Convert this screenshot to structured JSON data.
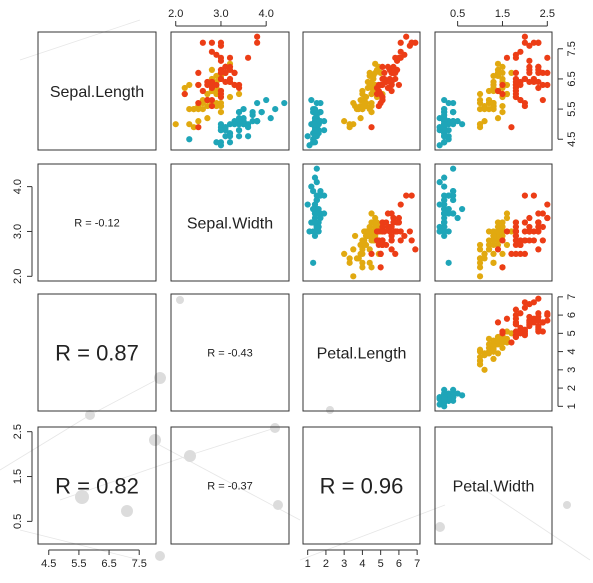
{
  "chart_data": {
    "type": "scatter-matrix",
    "variables": [
      "Sepal.Length",
      "Sepal.Width",
      "Petal.Length",
      "Petal.Width"
    ],
    "ranges": {
      "Sepal.Length": [
        4.3,
        7.9
      ],
      "Sepal.Width": [
        2.0,
        4.4
      ],
      "Petal.Length": [
        1.0,
        6.9
      ],
      "Petal.Width": [
        0.1,
        2.5
      ]
    },
    "ticks": {
      "Sepal.Length": [
        "4.5",
        "5.5",
        "6.5",
        "7.5"
      ],
      "Sepal.Width": [
        "2.0",
        "3.0",
        "4.0"
      ],
      "Petal.Length": [
        "1",
        "2",
        "3",
        "4",
        "5",
        "6",
        "7"
      ],
      "Petal.Width": [
        "0.5",
        "1.5",
        "2.5"
      ]
    },
    "correlations": [
      {
        "row": 1,
        "col": 0,
        "text": "R = -0.12",
        "size": "small"
      },
      {
        "row": 2,
        "col": 0,
        "text": "R = 0.87",
        "size": "large"
      },
      {
        "row": 2,
        "col": 1,
        "text": "R = -0.43",
        "size": "small"
      },
      {
        "row": 3,
        "col": 0,
        "text": "R = 0.82",
        "size": "large"
      },
      {
        "row": 3,
        "col": 1,
        "text": "R = -0.37",
        "size": "small"
      },
      {
        "row": 3,
        "col": 2,
        "text": "R = 0.96",
        "size": "large"
      }
    ],
    "colors": [
      "#1fa5b8",
      "#e1a910",
      "#ec3d16"
    ],
    "grid": false,
    "legend": "none",
    "series": [
      {
        "points": [
          [
            5.1,
            3.5,
            1.4,
            0.2
          ],
          [
            4.9,
            3.0,
            1.4,
            0.2
          ],
          [
            4.7,
            3.2,
            1.3,
            0.2
          ],
          [
            4.6,
            3.1,
            1.5,
            0.2
          ],
          [
            5.0,
            3.6,
            1.4,
            0.2
          ],
          [
            5.4,
            3.9,
            1.7,
            0.4
          ],
          [
            4.6,
            3.4,
            1.4,
            0.3
          ],
          [
            5.0,
            3.4,
            1.5,
            0.2
          ],
          [
            4.4,
            2.9,
            1.4,
            0.2
          ],
          [
            4.9,
            3.1,
            1.5,
            0.1
          ],
          [
            5.4,
            3.7,
            1.5,
            0.2
          ],
          [
            4.8,
            3.4,
            1.6,
            0.2
          ],
          [
            4.8,
            3.0,
            1.4,
            0.1
          ],
          [
            4.3,
            3.0,
            1.1,
            0.1
          ],
          [
            5.8,
            4.0,
            1.2,
            0.2
          ],
          [
            5.7,
            4.4,
            1.5,
            0.4
          ],
          [
            5.4,
            3.9,
            1.3,
            0.4
          ],
          [
            5.1,
            3.5,
            1.4,
            0.3
          ],
          [
            5.7,
            3.8,
            1.7,
            0.3
          ],
          [
            5.1,
            3.8,
            1.5,
            0.3
          ],
          [
            5.4,
            3.4,
            1.7,
            0.2
          ],
          [
            5.1,
            3.7,
            1.5,
            0.4
          ],
          [
            4.6,
            3.6,
            1.0,
            0.2
          ],
          [
            5.1,
            3.3,
            1.7,
            0.5
          ],
          [
            4.8,
            3.4,
            1.9,
            0.2
          ],
          [
            5.0,
            3.0,
            1.6,
            0.2
          ],
          [
            5.0,
            3.4,
            1.6,
            0.4
          ],
          [
            5.2,
            3.5,
            1.5,
            0.2
          ],
          [
            5.2,
            3.4,
            1.4,
            0.2
          ],
          [
            4.7,
            3.2,
            1.6,
            0.2
          ],
          [
            4.8,
            3.1,
            1.6,
            0.2
          ],
          [
            5.4,
            3.4,
            1.5,
            0.4
          ],
          [
            5.2,
            4.1,
            1.5,
            0.1
          ],
          [
            5.5,
            4.2,
            1.4,
            0.2
          ],
          [
            4.9,
            3.1,
            1.5,
            0.2
          ],
          [
            5.0,
            3.2,
            1.2,
            0.2
          ],
          [
            5.5,
            3.5,
            1.3,
            0.2
          ],
          [
            4.9,
            3.6,
            1.4,
            0.1
          ],
          [
            4.4,
            3.0,
            1.3,
            0.2
          ],
          [
            5.1,
            3.4,
            1.5,
            0.2
          ],
          [
            5.0,
            3.5,
            1.3,
            0.3
          ],
          [
            4.5,
            2.3,
            1.3,
            0.3
          ],
          [
            4.4,
            3.2,
            1.3,
            0.2
          ],
          [
            5.0,
            3.5,
            1.6,
            0.6
          ],
          [
            5.1,
            3.8,
            1.9,
            0.4
          ],
          [
            4.8,
            3.0,
            1.4,
            0.3
          ],
          [
            5.1,
            3.8,
            1.6,
            0.2
          ],
          [
            4.6,
            3.2,
            1.4,
            0.2
          ],
          [
            5.3,
            3.7,
            1.5,
            0.2
          ],
          [
            5.0,
            3.3,
            1.4,
            0.2
          ]
        ]
      },
      {
        "points": [
          [
            7.0,
            3.2,
            4.7,
            1.4
          ],
          [
            6.4,
            3.2,
            4.5,
            1.5
          ],
          [
            6.9,
            3.1,
            4.9,
            1.5
          ],
          [
            5.5,
            2.3,
            4.0,
            1.3
          ],
          [
            6.5,
            2.8,
            4.6,
            1.5
          ],
          [
            5.7,
            2.8,
            4.5,
            1.3
          ],
          [
            6.3,
            3.3,
            4.7,
            1.6
          ],
          [
            4.9,
            2.4,
            3.3,
            1.0
          ],
          [
            6.6,
            2.9,
            4.6,
            1.3
          ],
          [
            5.2,
            2.7,
            3.9,
            1.4
          ],
          [
            5.0,
            2.0,
            3.5,
            1.0
          ],
          [
            5.9,
            3.0,
            4.2,
            1.5
          ],
          [
            6.0,
            2.2,
            4.0,
            1.0
          ],
          [
            6.1,
            2.9,
            4.7,
            1.4
          ],
          [
            5.6,
            2.9,
            3.6,
            1.3
          ],
          [
            6.7,
            3.1,
            4.4,
            1.4
          ],
          [
            5.6,
            3.0,
            4.5,
            1.5
          ],
          [
            5.8,
            2.7,
            4.1,
            1.0
          ],
          [
            6.2,
            2.2,
            4.5,
            1.5
          ],
          [
            5.6,
            2.5,
            3.9,
            1.1
          ],
          [
            5.9,
            3.2,
            4.8,
            1.8
          ],
          [
            6.1,
            2.8,
            4.0,
            1.3
          ],
          [
            6.3,
            2.5,
            4.9,
            1.5
          ],
          [
            6.1,
            2.8,
            4.7,
            1.2
          ],
          [
            6.4,
            2.9,
            4.3,
            1.3
          ],
          [
            6.6,
            3.0,
            4.4,
            1.4
          ],
          [
            6.8,
            2.8,
            4.8,
            1.4
          ],
          [
            6.7,
            3.0,
            5.0,
            1.7
          ],
          [
            6.0,
            2.9,
            4.5,
            1.5
          ],
          [
            5.7,
            2.6,
            3.5,
            1.0
          ],
          [
            5.5,
            2.4,
            3.8,
            1.1
          ],
          [
            5.5,
            2.4,
            3.7,
            1.0
          ],
          [
            5.8,
            2.7,
            3.9,
            1.2
          ],
          [
            6.0,
            2.7,
            5.1,
            1.6
          ],
          [
            5.4,
            3.0,
            4.5,
            1.5
          ],
          [
            6.0,
            3.4,
            4.5,
            1.6
          ],
          [
            6.7,
            3.1,
            4.7,
            1.5
          ],
          [
            6.3,
            2.3,
            4.4,
            1.3
          ],
          [
            5.6,
            3.0,
            4.1,
            1.3
          ],
          [
            5.5,
            2.5,
            4.0,
            1.3
          ],
          [
            5.5,
            2.6,
            4.4,
            1.2
          ],
          [
            6.1,
            3.0,
            4.6,
            1.4
          ],
          [
            5.8,
            2.6,
            4.0,
            1.2
          ],
          [
            5.0,
            2.3,
            3.3,
            1.0
          ],
          [
            5.6,
            2.7,
            4.2,
            1.3
          ],
          [
            5.7,
            3.0,
            4.2,
            1.2
          ],
          [
            5.7,
            2.9,
            4.2,
            1.3
          ],
          [
            6.2,
            2.9,
            4.3,
            1.3
          ],
          [
            5.1,
            2.5,
            3.0,
            1.1
          ],
          [
            5.7,
            2.8,
            4.1,
            1.3
          ]
        ]
      },
      {
        "points": [
          [
            6.3,
            3.3,
            6.0,
            2.5
          ],
          [
            5.8,
            2.7,
            5.1,
            1.9
          ],
          [
            7.1,
            3.0,
            5.9,
            2.1
          ],
          [
            6.3,
            2.9,
            5.6,
            1.8
          ],
          [
            6.5,
            3.0,
            5.8,
            2.2
          ],
          [
            7.6,
            3.0,
            6.6,
            2.1
          ],
          [
            4.9,
            2.5,
            4.5,
            1.7
          ],
          [
            7.3,
            2.9,
            6.3,
            1.8
          ],
          [
            6.7,
            2.5,
            5.8,
            1.8
          ],
          [
            7.2,
            3.6,
            6.1,
            2.5
          ],
          [
            6.5,
            3.2,
            5.1,
            2.0
          ],
          [
            6.4,
            2.7,
            5.3,
            1.9
          ],
          [
            6.8,
            3.0,
            5.5,
            2.1
          ],
          [
            5.7,
            2.5,
            5.0,
            2.0
          ],
          [
            5.8,
            2.8,
            5.1,
            2.4
          ],
          [
            6.4,
            3.2,
            5.3,
            2.3
          ],
          [
            6.5,
            3.0,
            5.5,
            1.8
          ],
          [
            7.7,
            3.8,
            6.7,
            2.2
          ],
          [
            7.7,
            2.6,
            6.9,
            2.3
          ],
          [
            6.0,
            2.2,
            5.0,
            1.5
          ],
          [
            6.9,
            3.2,
            5.7,
            2.3
          ],
          [
            5.6,
            2.8,
            4.9,
            2.0
          ],
          [
            7.7,
            2.8,
            6.7,
            2.0
          ],
          [
            6.3,
            2.7,
            4.9,
            1.8
          ],
          [
            6.7,
            3.3,
            5.7,
            2.1
          ],
          [
            7.2,
            3.2,
            6.0,
            1.8
          ],
          [
            6.2,
            2.8,
            4.8,
            1.8
          ],
          [
            6.1,
            3.0,
            4.9,
            1.8
          ],
          [
            6.4,
            2.8,
            5.6,
            2.1
          ],
          [
            7.2,
            3.0,
            5.8,
            1.6
          ],
          [
            7.4,
            2.8,
            6.1,
            1.9
          ],
          [
            7.9,
            3.8,
            6.4,
            2.0
          ],
          [
            6.4,
            2.8,
            5.6,
            2.2
          ],
          [
            6.3,
            2.8,
            5.1,
            1.5
          ],
          [
            6.1,
            2.6,
            5.6,
            1.4
          ],
          [
            7.7,
            3.0,
            6.1,
            2.3
          ],
          [
            6.3,
            3.4,
            5.6,
            2.4
          ],
          [
            6.4,
            3.1,
            5.5,
            1.8
          ],
          [
            6.0,
            3.0,
            4.8,
            1.8
          ],
          [
            6.9,
            3.1,
            5.4,
            2.1
          ],
          [
            6.7,
            3.1,
            5.6,
            2.4
          ],
          [
            6.9,
            3.1,
            5.1,
            2.3
          ],
          [
            5.8,
            2.7,
            5.1,
            1.9
          ],
          [
            6.8,
            3.2,
            5.9,
            2.3
          ],
          [
            6.7,
            3.3,
            5.7,
            2.5
          ],
          [
            6.7,
            3.0,
            5.2,
            2.3
          ],
          [
            6.3,
            2.5,
            5.0,
            1.9
          ],
          [
            6.5,
            3.0,
            5.2,
            2.0
          ],
          [
            6.2,
            3.4,
            5.4,
            2.3
          ],
          [
            5.9,
            3.0,
            5.1,
            1.8
          ]
        ]
      }
    ]
  }
}
